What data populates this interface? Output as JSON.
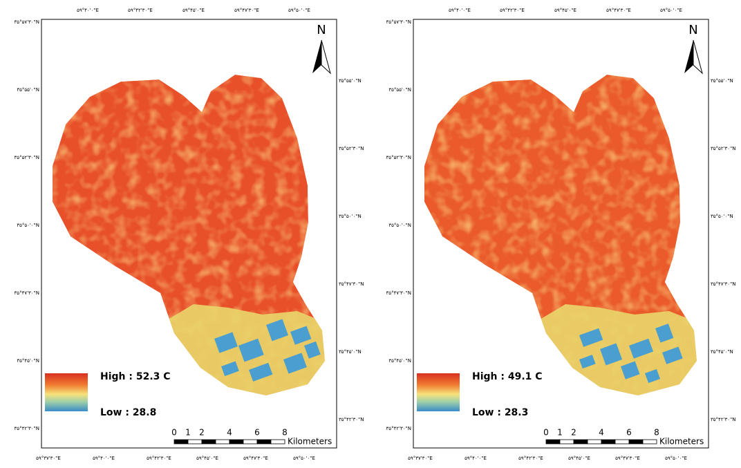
{
  "maps": [
    {
      "top_labels": [
        "۵۹°۴۰'۰\"E",
        "۵۹°۴۲'۳۰\"E",
        "۵۹°۴۵'۰\"E",
        "۵۹°۴۷'۳۰\"E",
        "۵۹°۵۰'۰\"E"
      ],
      "bottom_labels": [
        "۵۹°۳۷'۳۰\"E",
        "۵۹°۴۰'۰\"E",
        "۵۹°۴۲'۳۰\"E",
        "۵۹°۴۵'۰\"E",
        "۵۹°۴۷'۳۰\"E",
        "۵۹°۵۰'۰\"E"
      ],
      "left_labels": [
        "۳۵°۵۷'۳۰\"N",
        "۳۵°۵۵'۰\"N",
        "۳۵°۵۲'۳۰\"N",
        "۳۵°۵۰'۰\"N",
        "۳۵°۴۷'۳۰\"N",
        "۳۵°۴۵'۰\"N",
        "۳۵°۴۲'۳۰\"N"
      ],
      "right_labels": [
        "۳۵°۵۵'۰\"N",
        "۳۵°۵۲'۳۰\"N",
        "۳۵°۵۰'۰\"N",
        "۳۵°۴۷'۳۰\"N",
        "۳۵°۴۵'۰\"N",
        "۳۵°۴۲'۳۰\"N"
      ],
      "north": "N",
      "legend": {
        "high": "High : 52.3 C",
        "low": "Low : 28.8"
      },
      "scale": {
        "ticks": [
          "0",
          "1",
          "2",
          "4",
          "6",
          "8"
        ],
        "unit": "Kilometers"
      }
    },
    {
      "top_labels": [
        "۵۹°۴۰'۰\"E",
        "۵۹°۴۲'۳۰\"E",
        "۵۹°۴۵'۰\"E",
        "۵۹°۴۷'۳۰\"E",
        "۵۹°۵۰'۰\"E"
      ],
      "bottom_labels": [
        "۵۹°۳۷'۳۰\"E",
        "۵۹°۴۰'۰\"E",
        "۵۹°۴۲'۳۰\"E",
        "۵۹°۴۵'۰\"E",
        "۵۹°۴۷'۳۰\"E",
        "۵۹°۵۰'۰\"E"
      ],
      "left_labels": [
        "۳۵°۵۷'۳۰\"N",
        "۳۵°۵۵'۰\"N",
        "۳۵°۵۲'۳۰\"N",
        "۳۵°۵۰'۰\"N",
        "۳۵°۴۷'۳۰\"N",
        "۳۵°۴۵'۰\"N",
        "۳۵°۴۲'۳۰\"N"
      ],
      "right_labels": [
        "۳۵°۵۵'۰\"N",
        "۳۵°۵۲'۳۰\"N",
        "۳۵°۵۰'۰\"N",
        "۳۵°۴۷'۳۰\"N",
        "۳۵°۴۵'۰\"N",
        "۳۵°۴۲'۳۰\"N"
      ],
      "north": "N",
      "legend": {
        "high": "High : 49.1 C",
        "low": "Low : 28.3"
      },
      "scale": {
        "ticks": [
          "0",
          "1",
          "2",
          "4",
          "6",
          "8"
        ],
        "unit": "Kilometers"
      }
    }
  ]
}
